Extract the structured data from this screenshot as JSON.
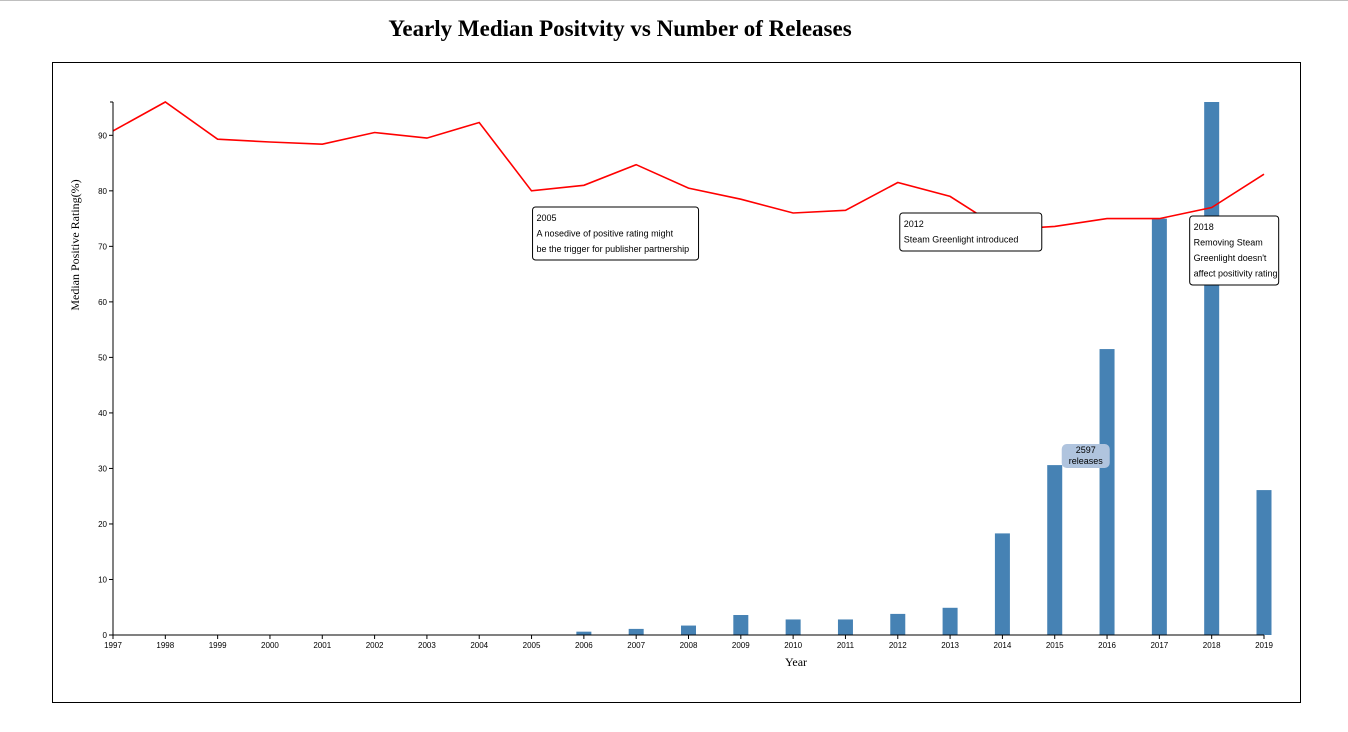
{
  "title": "Yearly Median Positvity vs Number of Releases",
  "chart_data": {
    "type": "bar+line",
    "xlabel": "Year",
    "ylabel": "Median Positive Rating(%)",
    "ylim": [
      0,
      96
    ],
    "yticks": [
      0,
      10,
      20,
      30,
      40,
      50,
      60,
      70,
      80,
      90
    ],
    "categories": [
      "1997",
      "1998",
      "1999",
      "2000",
      "2001",
      "2002",
      "2003",
      "2004",
      "2005",
      "2006",
      "2007",
      "2008",
      "2009",
      "2010",
      "2011",
      "2012",
      "2013",
      "2014",
      "2015",
      "2016",
      "2017",
      "2018",
      "2019"
    ],
    "line_series": {
      "color": "#ff0000",
      "values": [
        90.8,
        96.0,
        89.3,
        88.8,
        88.4,
        90.5,
        89.5,
        92.3,
        80.0,
        81.0,
        84.7,
        80.5,
        78.5,
        76.0,
        76.5,
        81.5,
        79.0,
        73.0,
        73.6,
        75.0,
        75.0,
        77.0,
        83.0
      ]
    },
    "bar_series": {
      "color": "#4682b4",
      "values": [
        0,
        0,
        0,
        0,
        0,
        0,
        0,
        0,
        0,
        0.6,
        1.1,
        1.7,
        3.6,
        2.8,
        2.8,
        3.8,
        4.9,
        18.3,
        30.6,
        51.5,
        75.0,
        96.0,
        26.1
      ]
    },
    "tooltip": {
      "year": "2015",
      "line1": "2597",
      "line2": "releases"
    },
    "annotations": [
      {
        "year": "2005",
        "lines": [
          "2005",
          "A nosedive of positive rating might",
          "be the trigger for publisher partnership"
        ]
      },
      {
        "year": "2012",
        "lines": [
          "2012",
          "Steam Greenlight introduced"
        ]
      },
      {
        "year": "2018",
        "lines": [
          "2018",
          "Removing Steam",
          "Greenlight doesn't",
          "affect positivity rating"
        ]
      }
    ]
  }
}
